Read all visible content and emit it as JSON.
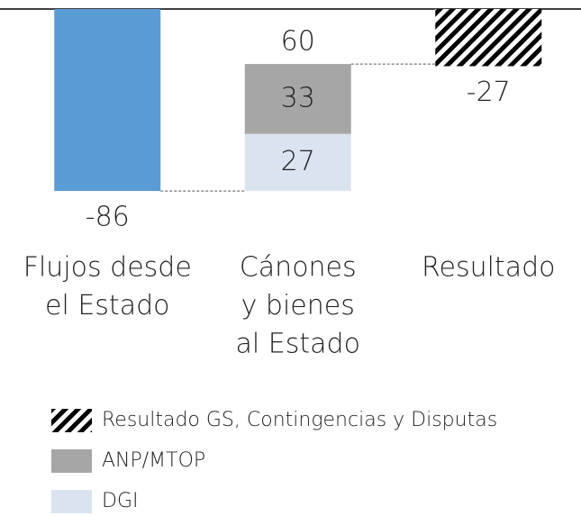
{
  "chart_data": {
    "type": "waterfall",
    "categories": [
      [
        "Flujos desde",
        "el Estado"
      ],
      [
        "Cánones",
        "y bienes",
        "al Estado"
      ],
      [
        "Resultado"
      ]
    ],
    "measure": [
      "relative",
      "relative",
      "total"
    ],
    "series": [
      {
        "color": "#5b9bd5",
        "values": [
          -86,
          null,
          null
        ]
      },
      {
        "name": "DGI",
        "color": "#dae3f0",
        "values": [
          null,
          27,
          null
        ]
      },
      {
        "name": "ANP/MTOP",
        "color": "#a6a6a6",
        "values": [
          null,
          33,
          null
        ]
      },
      {
        "name": "Resultado GS, Contingencias y Disputas",
        "color": "#000000",
        "pattern": "hatch",
        "values": [
          null,
          null,
          -27
        ]
      }
    ],
    "totals": [
      null,
      60,
      null
    ],
    "ylim": [
      -100,
      0
    ]
  }
}
